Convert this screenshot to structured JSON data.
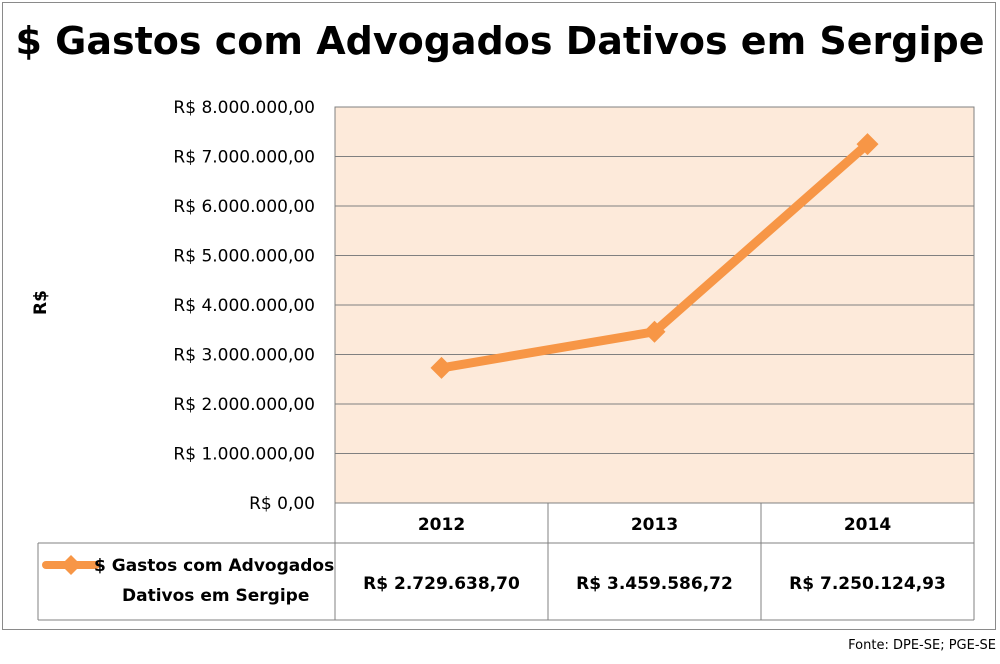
{
  "chart_data": {
    "type": "line",
    "title": "$ Gastos com Advogados Dativos em Sergipe",
    "xlabel": "",
    "ylabel": "R$",
    "categories": [
      "2012",
      "2013",
      "2014"
    ],
    "series": [
      {
        "name": "$ Gastos com Advogados Dativos em Sergipe",
        "values": [
          2729638.7,
          3459586.72,
          7250124.93
        ],
        "value_labels": [
          "R$ 2.729.638,70",
          "R$ 3.459.586,72",
          "R$ 7.250.124,93"
        ]
      }
    ],
    "ylim": [
      0,
      8000000
    ],
    "y_ticks": [
      0,
      1000000,
      2000000,
      3000000,
      4000000,
      5000000,
      6000000,
      7000000,
      8000000
    ],
    "y_tick_labels": [
      "R$ 0,00",
      "R$ 1.000.000,00",
      "R$ 2.000.000,00",
      "R$ 3.000.000,00",
      "R$ 4.000.000,00",
      "R$ 5.000.000,00",
      "R$ 6.000.000,00",
      "R$ 7.000.000,00",
      "R$ 8.000.000,00"
    ],
    "grid": true,
    "legend": "bottom-left, in data table",
    "data_table": true,
    "colors": {
      "line": "#F79646",
      "plot_bg": "#FDEADA",
      "grid": "#808080"
    }
  },
  "legend_label_lines": [
    "$ Gastos com Advogados",
    "Dativos em Sergipe"
  ],
  "source": "Fonte: DPE-SE; PGE-SE"
}
